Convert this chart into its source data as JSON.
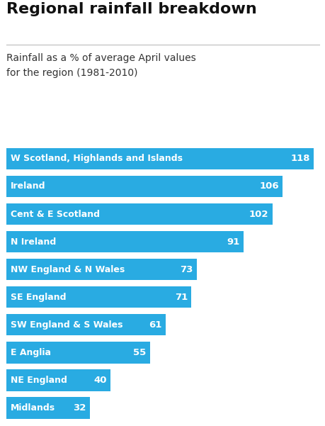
{
  "title": "Regional rainfall breakdown",
  "subtitle": "Rainfall as a % of average April values\nfor the region (1981-2010)",
  "categories": [
    "W Scotland, Highlands and Islands",
    "Ireland",
    "Cent & E Scotland",
    "N Ireland",
    "NW England & N Wales",
    "SE England",
    "SW England & S Wales",
    "E Anglia",
    "NE England",
    "Midlands"
  ],
  "values": [
    118,
    106,
    102,
    91,
    73,
    71,
    61,
    55,
    40,
    32
  ],
  "bar_color": "#29ABE2",
  "text_color": "#ffffff",
  "background_color": "#ffffff",
  "title_color": "#111111",
  "subtitle_color": "#333333",
  "max_value": 120,
  "bar_height": 0.78,
  "title_fontsize": 16,
  "subtitle_fontsize": 10,
  "label_fontsize": 9,
  "value_fontsize": 9.5
}
